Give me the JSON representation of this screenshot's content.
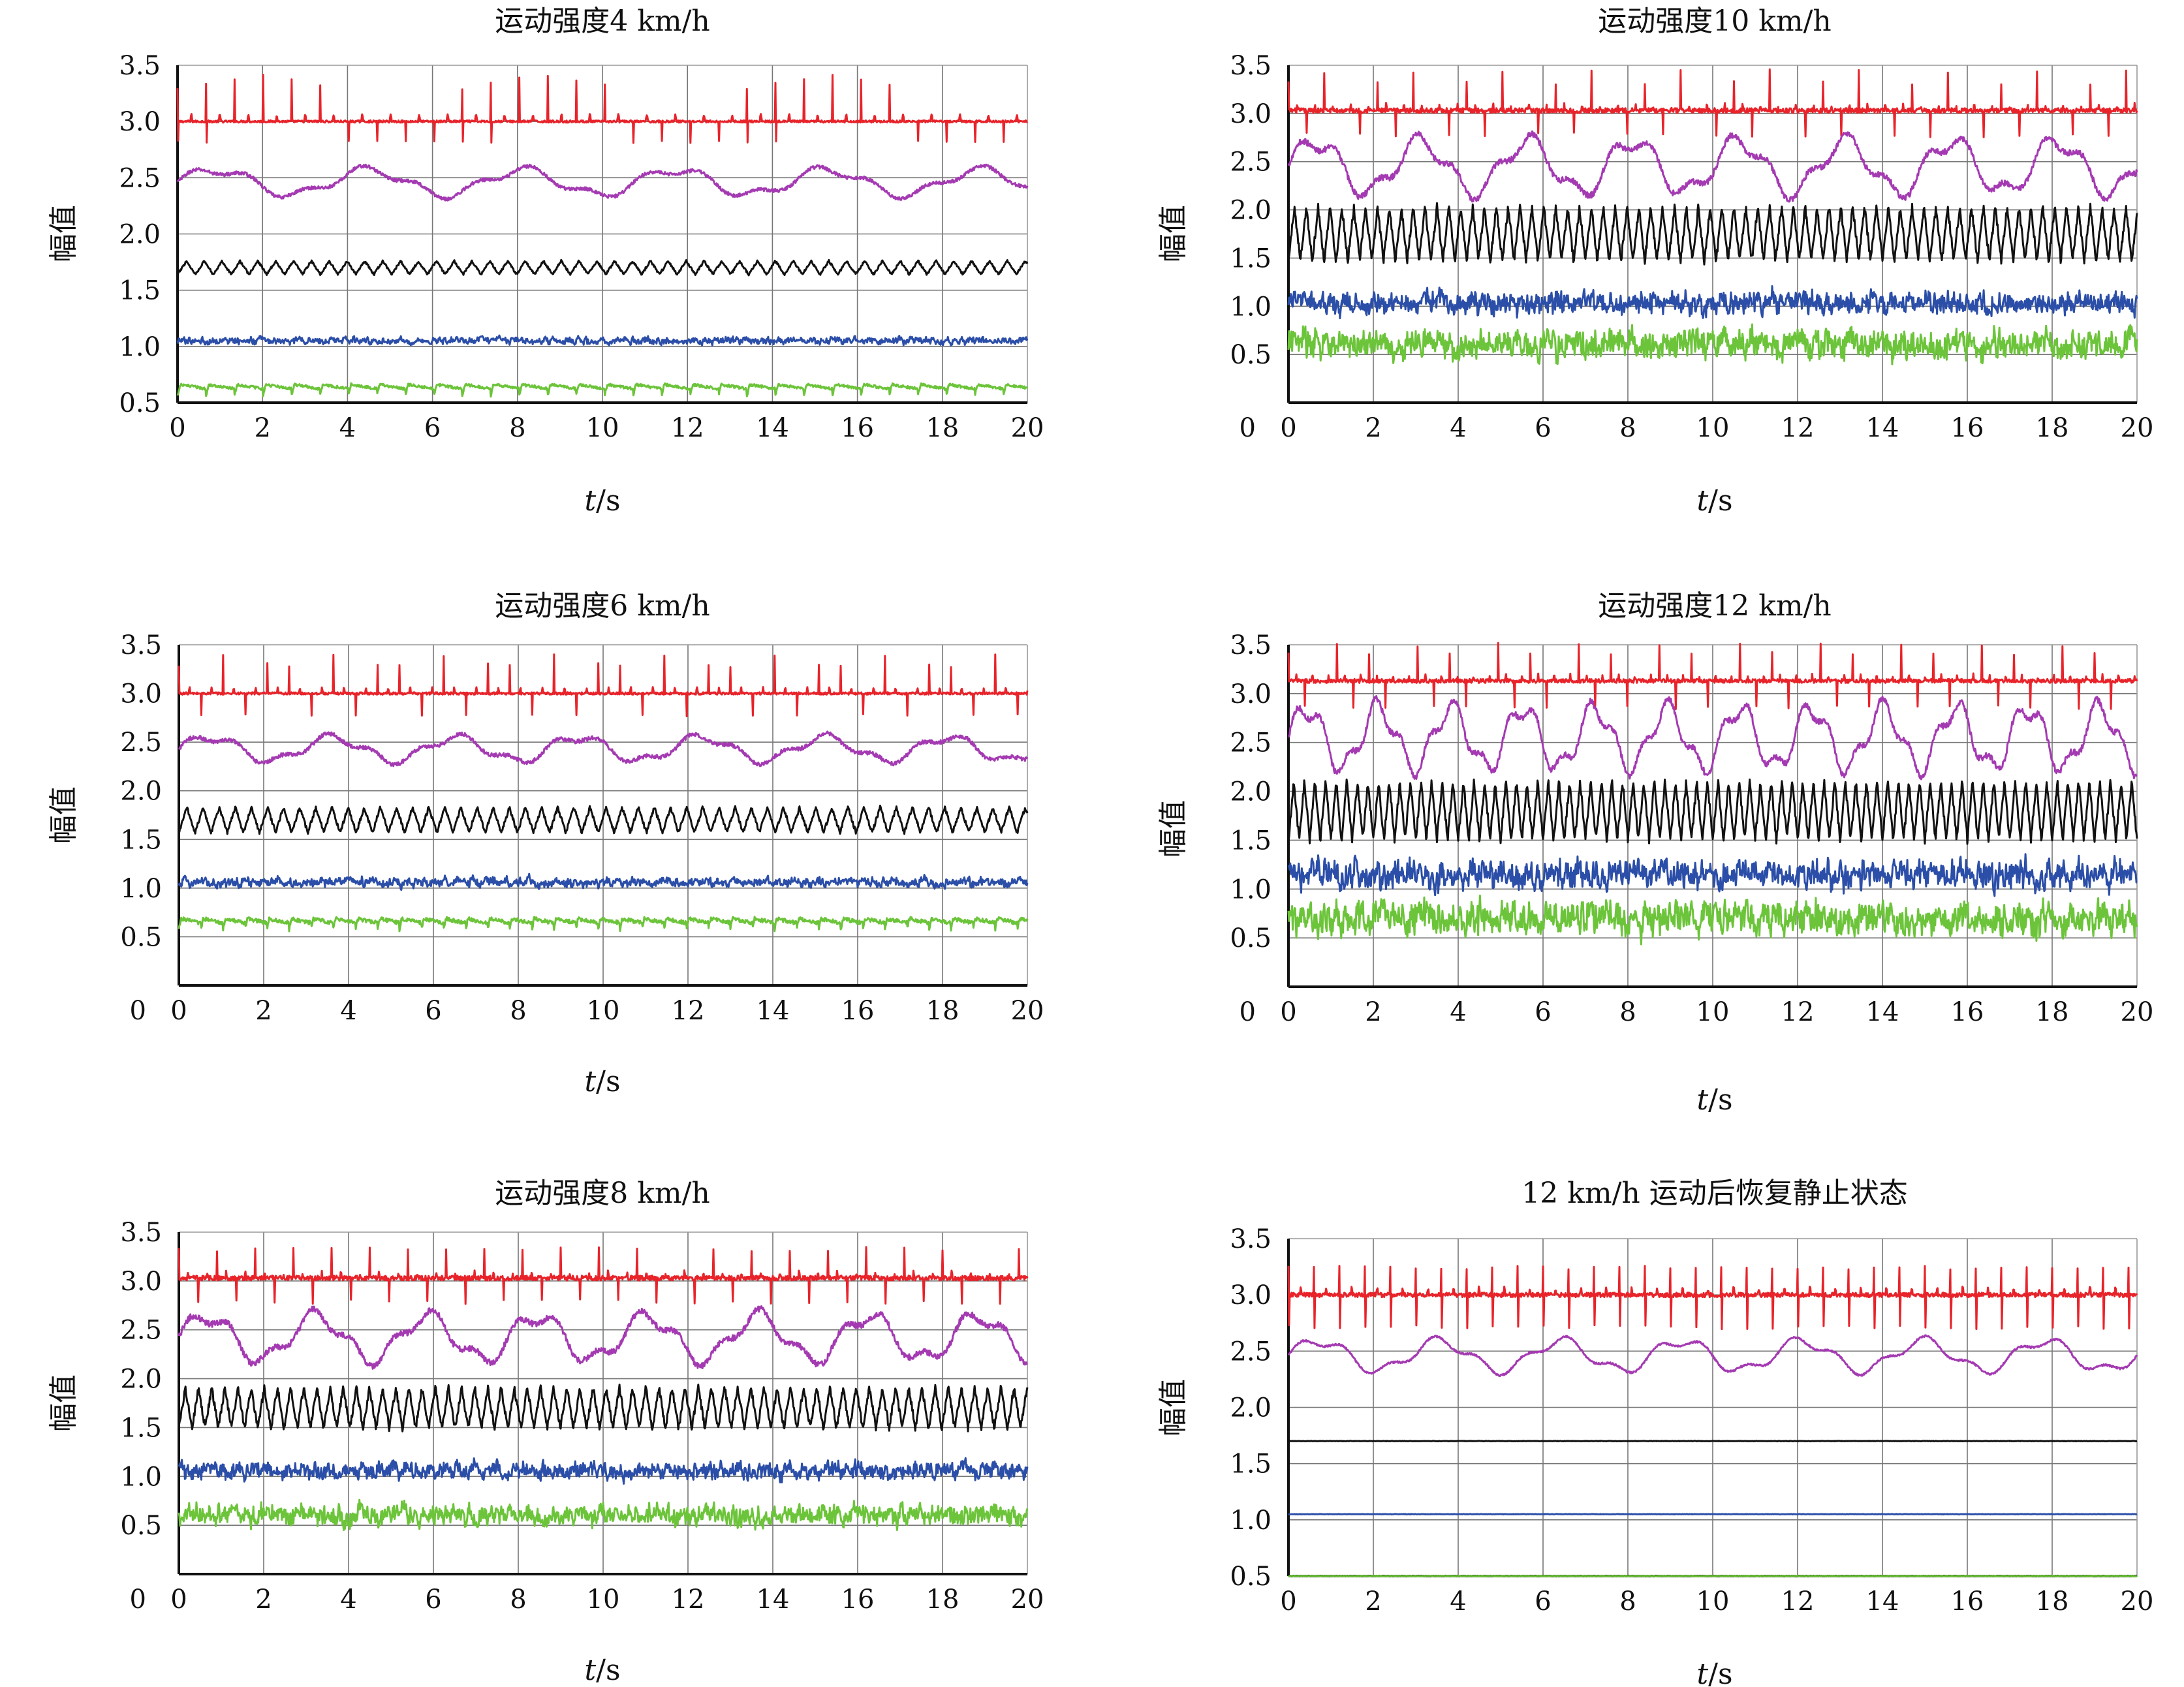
{
  "figure": {
    "colors": {
      "red": "#e8232a",
      "purple": "#a43ab2",
      "black": "#111111",
      "blue": "#2b4ea8",
      "green": "#6cc43a"
    },
    "ylabel": "幅值",
    "xlabel_var": "t",
    "xlabel_unit": "/s"
  },
  "chart_data": [
    {
      "type": "line",
      "title": "运动强度4 km/h",
      "xlabel": "t/s",
      "ylabel": "幅值",
      "xlim": [
        0,
        20
      ],
      "ylim": [
        0.5,
        3.5
      ],
      "yticks": [
        "0.5",
        "1.0",
        "1.5",
        "2.0",
        "2.5",
        "3.0",
        "3.5"
      ],
      "xticks": [
        "0",
        "2",
        "4",
        "6",
        "8",
        "10",
        "12",
        "14",
        "16",
        "18",
        "20"
      ],
      "grid": true,
      "series": [
        {
          "color": "red",
          "baseline": 3.0,
          "pattern": "spikes",
          "period": 0.67,
          "up": 0.42,
          "down": 0.2,
          "noise": 0.01
        },
        {
          "color": "purple",
          "baseline": 2.46,
          "pattern": "wave",
          "period": 3.6,
          "amp": 0.11,
          "noise": 0.015
        },
        {
          "color": "black",
          "baseline": 1.7,
          "pattern": "osc",
          "period": 0.42,
          "amp": 0.06,
          "noise": 0.01
        },
        {
          "color": "blue",
          "baseline": 1.05,
          "pattern": "noise",
          "amp": 0.02,
          "noise": 0.015
        },
        {
          "color": "green",
          "baseline": 0.63,
          "pattern": "saw",
          "period": 0.67,
          "amp": 0.07,
          "noise": 0.012
        }
      ]
    },
    {
      "type": "line",
      "title": "运动强度10 km/h",
      "xlabel": "t/s",
      "ylabel": "幅值",
      "xlim": [
        0,
        20
      ],
      "ylim": [
        0,
        3.5
      ],
      "yticks": [
        "0.5",
        "1.0",
        "1.5",
        "2.0",
        "2.5",
        "3.0",
        "3.5"
      ],
      "xticks": [
        "0",
        "2",
        "4",
        "6",
        "8",
        "10",
        "12",
        "14",
        "16",
        "18",
        "20"
      ],
      "grid": true,
      "series": [
        {
          "color": "red",
          "baseline": 3.03,
          "pattern": "spikes",
          "period": 0.42,
          "up": 0.42,
          "down": 0.28,
          "noise": 0.025
        },
        {
          "color": "purple",
          "baseline": 2.45,
          "pattern": "wave",
          "period": 2.5,
          "amp": 0.26,
          "noise": 0.03
        },
        {
          "color": "black",
          "baseline": 1.75,
          "pattern": "osc",
          "period": 0.28,
          "amp": 0.28,
          "noise": 0.04
        },
        {
          "color": "blue",
          "baseline": 1.03,
          "pattern": "noise",
          "amp": 0.06,
          "noise": 0.07
        },
        {
          "color": "green",
          "baseline": 0.6,
          "pattern": "noise",
          "amp": 0.08,
          "noise": 0.09
        }
      ]
    },
    {
      "type": "line",
      "title": "运动强度6 km/h",
      "xlabel": "t/s",
      "ylabel": "幅值",
      "xlim": [
        0,
        20
      ],
      "ylim": [
        0,
        3.5
      ],
      "yticks": [
        "0.5",
        "1.0",
        "1.5",
        "2.0",
        "2.5",
        "3.0",
        "3.5"
      ],
      "xticks": [
        "0",
        "2",
        "4",
        "6",
        "8",
        "10",
        "12",
        "14",
        "16",
        "18",
        "20"
      ],
      "grid": true,
      "series": [
        {
          "color": "red",
          "baseline": 3.0,
          "pattern": "spikes",
          "period": 0.52,
          "up": 0.4,
          "down": 0.25,
          "noise": 0.012
        },
        {
          "color": "purple",
          "baseline": 2.43,
          "pattern": "wave",
          "period": 2.9,
          "amp": 0.12,
          "noise": 0.02
        },
        {
          "color": "black",
          "baseline": 1.7,
          "pattern": "osc",
          "period": 0.38,
          "amp": 0.13,
          "noise": 0.02
        },
        {
          "color": "blue",
          "baseline": 1.06,
          "pattern": "noise",
          "amp": 0.03,
          "noise": 0.025
        },
        {
          "color": "green",
          "baseline": 0.65,
          "pattern": "saw",
          "period": 0.52,
          "amp": 0.08,
          "noise": 0.02
        }
      ]
    },
    {
      "type": "line",
      "title": "运动强度12 km/h",
      "xlabel": "t/s",
      "ylabel": "幅值",
      "xlim": [
        0,
        20
      ],
      "ylim": [
        0,
        3.5
      ],
      "yticks": [
        "0.5",
        "1.0",
        "1.5",
        "2.0",
        "2.5",
        "3.0",
        "3.5"
      ],
      "xticks": [
        "0",
        "2",
        "4",
        "6",
        "8",
        "10",
        "12",
        "14",
        "16",
        "18",
        "20"
      ],
      "grid": true,
      "series": [
        {
          "color": "red",
          "baseline": 3.13,
          "pattern": "spikes",
          "period": 0.38,
          "up": 0.4,
          "down": 0.3,
          "noise": 0.02
        },
        {
          "color": "purple",
          "baseline": 2.55,
          "pattern": "wave",
          "period": 1.7,
          "amp": 0.3,
          "noise": 0.03
        },
        {
          "color": "black",
          "baseline": 1.8,
          "pattern": "osc",
          "period": 0.25,
          "amp": 0.3,
          "noise": 0.04
        },
        {
          "color": "blue",
          "baseline": 1.15,
          "pattern": "noise",
          "amp": 0.08,
          "noise": 0.08
        },
        {
          "color": "green",
          "baseline": 0.7,
          "pattern": "noise",
          "amp": 0.09,
          "noise": 0.1
        }
      ]
    },
    {
      "type": "line",
      "title": "运动强度8 km/h",
      "xlabel": "t/s",
      "ylabel": "幅值",
      "xlim": [
        0,
        20
      ],
      "ylim": [
        0,
        3.5
      ],
      "yticks": [
        "0.5",
        "1.0",
        "1.5",
        "2.0",
        "2.5",
        "3.0",
        "3.5"
      ],
      "xticks": [
        "0",
        "2",
        "4",
        "6",
        "8",
        "10",
        "12",
        "14",
        "16",
        "18",
        "20"
      ],
      "grid": true,
      "series": [
        {
          "color": "red",
          "baseline": 3.03,
          "pattern": "spikes",
          "period": 0.45,
          "up": 0.42,
          "down": 0.27,
          "noise": 0.025
        },
        {
          "color": "purple",
          "baseline": 2.42,
          "pattern": "wave",
          "period": 2.6,
          "amp": 0.22,
          "noise": 0.03
        },
        {
          "color": "black",
          "baseline": 1.7,
          "pattern": "osc",
          "period": 0.31,
          "amp": 0.21,
          "noise": 0.035
        },
        {
          "color": "blue",
          "baseline": 1.06,
          "pattern": "noise",
          "amp": 0.05,
          "noise": 0.05
        },
        {
          "color": "green",
          "baseline": 0.6,
          "pattern": "noise",
          "amp": 0.06,
          "noise": 0.06
        }
      ]
    },
    {
      "type": "line",
      "title": "12 km/h 运动后恢复静止状态",
      "xlabel": "t/s",
      "ylabel": "幅值",
      "xlim": [
        0,
        20
      ],
      "ylim": [
        0.5,
        3.5
      ],
      "yticks": [
        "0.5",
        "1.0",
        "1.5",
        "2.0",
        "2.5",
        "3.0",
        "3.5"
      ],
      "xticks": [
        "0",
        "2",
        "4",
        "6",
        "8",
        "10",
        "12",
        "14",
        "16",
        "18",
        "20"
      ],
      "grid": true,
      "series": [
        {
          "color": "red",
          "baseline": 3.0,
          "pattern": "spikes",
          "period": 0.6,
          "up": 0.35,
          "down": 0.32,
          "noise": 0.02
        },
        {
          "color": "purple",
          "baseline": 2.46,
          "pattern": "wave",
          "period": 2.85,
          "amp": 0.13,
          "noise": 0.008
        },
        {
          "color": "black",
          "baseline": 1.7,
          "pattern": "flat",
          "noise": 0.002
        },
        {
          "color": "blue",
          "baseline": 1.05,
          "pattern": "flat",
          "noise": 0.002
        },
        {
          "color": "green",
          "baseline": 0.5,
          "pattern": "flat",
          "noise": 0.003
        }
      ]
    }
  ]
}
